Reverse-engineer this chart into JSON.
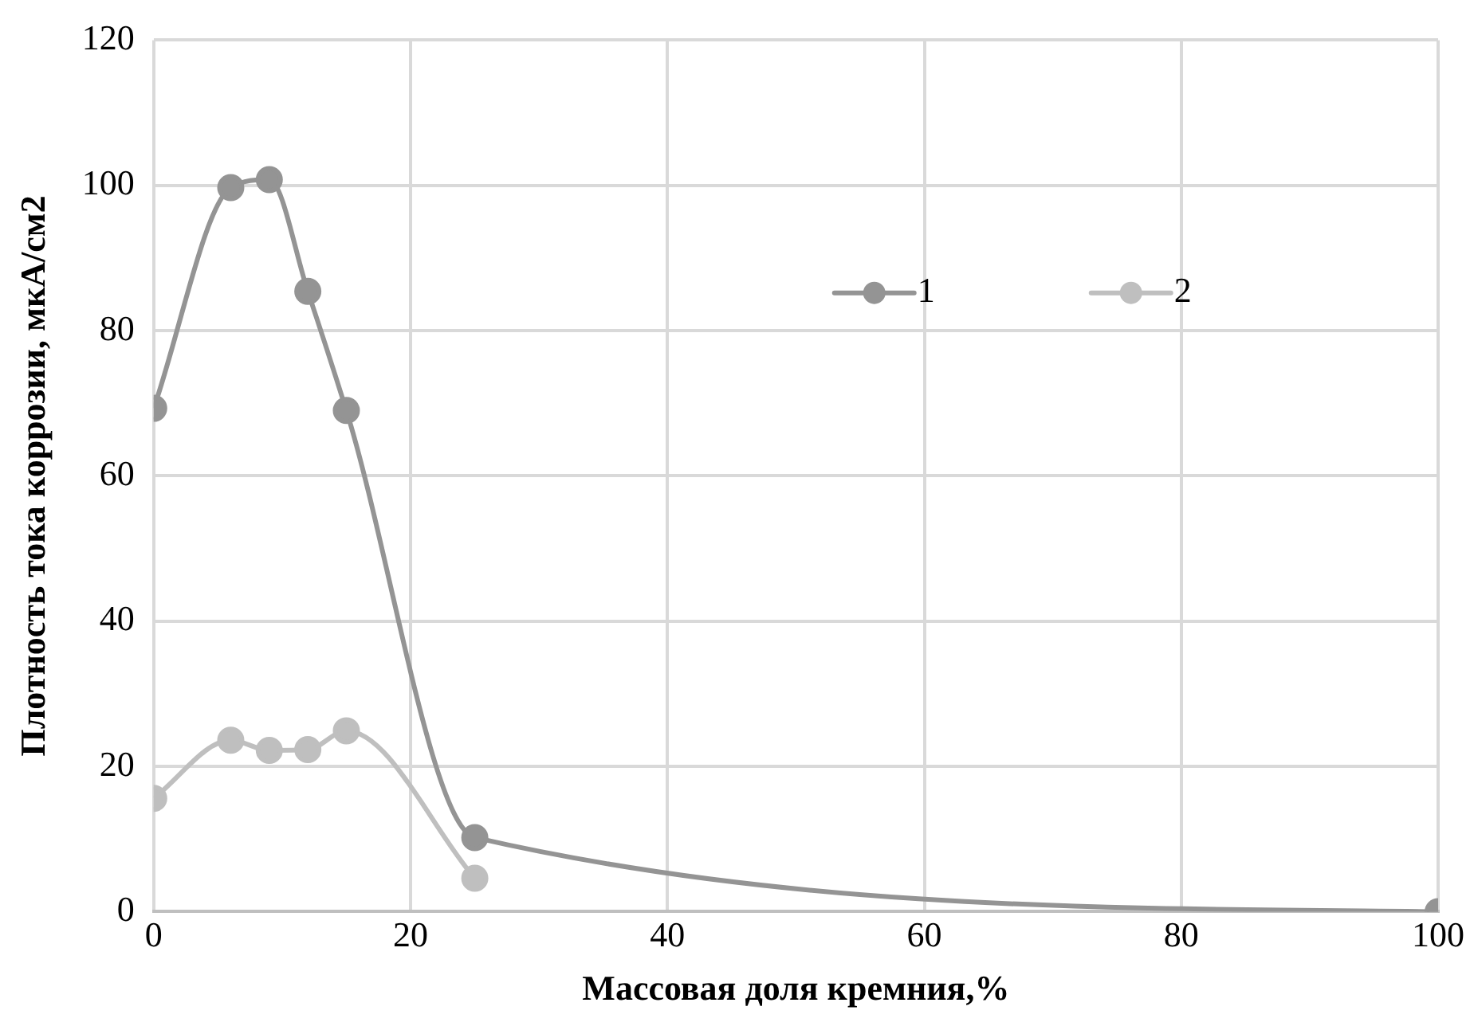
{
  "chart_data": {
    "type": "line",
    "xlabel": "Массовая доля кремния,%",
    "ylabel": "Плотность тока коррозии, мкА/см2",
    "x": [
      0,
      6,
      9,
      12,
      15,
      25,
      100
    ],
    "series": [
      {
        "name": "1",
        "color": "#949494",
        "values": [
          69.3,
          99.7,
          100.8,
          85.4,
          69,
          10.2,
          0
        ]
      },
      {
        "name": "2",
        "color": "#bfbfbf",
        "x": [
          0,
          6,
          9,
          12,
          15,
          25
        ],
        "values": [
          15.6,
          23.6,
          22.2,
          22.3,
          24.9,
          4.6
        ]
      }
    ],
    "xlim": [
      0,
      100
    ],
    "xticks": [
      0,
      20,
      40,
      60,
      80,
      100
    ],
    "ylim": [
      0,
      120
    ],
    "yticks": [
      0,
      20,
      40,
      60,
      80,
      100,
      120
    ],
    "grid": true,
    "legend": "top right",
    "marker": "circle",
    "line_style": "solid"
  }
}
